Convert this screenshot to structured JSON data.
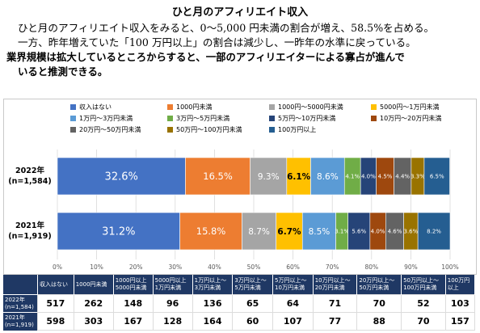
{
  "text": {
    "title": "ひと月のアフィリエイト収入",
    "para1": "ひと月のアフィリエイト収入をみると、0～5,000 円未満の割合が増え、58.5%を占める。",
    "para2": "一方、昨年増えていた「100 万円以上」の割合は減少し、一昨年の水準に戻っている。",
    "para3": "業界規模は拡大しているところからすると、一部のアフィリエイターによる寡占が進んで",
    "para4": "いると推測できる。"
  },
  "chart_data": {
    "type": "bar",
    "orientation": "horizontal",
    "stacked": true,
    "percent": true,
    "categories": [
      "2022年\n(n=1,584)",
      "2021年\n(n=1,919)"
    ],
    "xlim": [
      0,
      100
    ],
    "xticks": [
      "0%",
      "10%",
      "20%",
      "30%",
      "40%",
      "50%",
      "60%",
      "70%",
      "80%",
      "90%",
      "100%"
    ],
    "grid": true,
    "legend": "top",
    "series": [
      {
        "name": "収入はない",
        "color": "#4472c4",
        "values": [
          32.6,
          31.2
        ],
        "labels": [
          "32.6%",
          "31.2%"
        ]
      },
      {
        "name": "1000円未満",
        "color": "#ed7d31",
        "values": [
          16.5,
          15.8
        ],
        "labels": [
          "16.5%",
          "15.8%"
        ]
      },
      {
        "name": "1000円～5000円未満",
        "color": "#a5a5a5",
        "values": [
          9.3,
          8.7
        ],
        "labels": [
          "9.3%",
          "8.7%"
        ]
      },
      {
        "name": "5000円～1万円未満",
        "color": "#ffc000",
        "values": [
          6.1,
          6.7
        ],
        "labels": [
          "6.1%",
          "6.7%"
        ]
      },
      {
        "name": "1万円～3万円未満",
        "color": "#5b9bd5",
        "values": [
          8.6,
          8.5
        ],
        "labels": [
          "8.6%",
          "8.5%"
        ]
      },
      {
        "name": "3万円～5万円未満",
        "color": "#70ad47",
        "values": [
          4.1,
          3.1
        ],
        "labels": [
          "4.1%",
          "3.1%"
        ]
      },
      {
        "name": "5万円～10万円未満",
        "color": "#264478",
        "values": [
          4.0,
          5.6
        ],
        "labels": [
          "4.0%",
          "5.6%"
        ]
      },
      {
        "name": "10万円～20万円未満",
        "color": "#9e480e",
        "values": [
          4.5,
          4.0
        ],
        "labels": [
          "4.5%",
          "4.0%"
        ]
      },
      {
        "name": "20万円～50万円未満",
        "color": "#636363",
        "values": [
          4.4,
          4.6
        ],
        "labels": [
          "4.4%",
          "4.6%"
        ]
      },
      {
        "name": "50万円～100万円未満",
        "color": "#997300",
        "values": [
          3.3,
          3.6
        ],
        "labels": [
          "3.3%",
          "3.6%"
        ]
      },
      {
        "name": "100万円以上",
        "color": "#255e91",
        "values": [
          6.5,
          8.2
        ],
        "labels": [
          "6.5%",
          "8.2%"
        ]
      }
    ]
  },
  "table": {
    "headers": [
      "",
      "収入はない",
      "1000円未満",
      "1000円以上\n5000円未満",
      "5000円以上\n1万円未満",
      "1万円以上～\n3万円未満",
      "3万円以上～\n5万円未満",
      "5万円以上～\n10万円未満",
      "10万円以上～\n20万円未満",
      "20万円以上～\n50万円未満",
      "50万円以上～\n100万円未満",
      "100万円\n以上"
    ],
    "rows": [
      {
        "label": "2022年\n(n=1,584)",
        "values": [
          "517",
          "262",
          "148",
          "96",
          "136",
          "65",
          "64",
          "71",
          "70",
          "52",
          "103"
        ]
      },
      {
        "label": "2021年\n(n=1,919)",
        "values": [
          "598",
          "303",
          "167",
          "128",
          "164",
          "60",
          "107",
          "77",
          "88",
          "70",
          "157"
        ]
      }
    ]
  }
}
